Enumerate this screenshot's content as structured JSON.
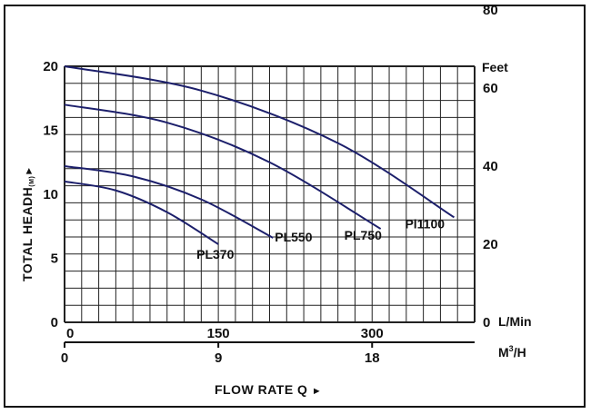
{
  "chart_data": {
    "type": "line",
    "xlabel": "FLOW RATE Q",
    "ylabel": "TOTAL HEADH",
    "ylabel_sub": "(M)",
    "arrow": "►",
    "xlim_m3h": [
      0,
      24
    ],
    "ylim_m": [
      0,
      20
    ],
    "grid": true,
    "y_left_ticks": [
      "0",
      "5",
      "10",
      "15",
      "20"
    ],
    "y_left_values": [
      0,
      5,
      10,
      15,
      20
    ],
    "y_right_unit": "Feet",
    "y_right_ticks": [
      "0",
      "20",
      "40",
      "60",
      "80"
    ],
    "y_right_values_m": [
      0,
      6.1,
      12.2,
      18.3,
      24.4
    ],
    "x_lmin_unit": "L/Min",
    "x_lmin_ticks": [
      "0",
      "150",
      "300"
    ],
    "x_lmin_values_m3h": [
      0,
      9,
      18
    ],
    "x_m3h_unit": "M",
    "x_m3h_unit_sup": "3",
    "x_m3h_unit_tail": "/H",
    "x_m3h_ticks": [
      "0",
      "9",
      "18"
    ],
    "x_m3h_values": [
      0,
      9,
      18
    ],
    "series": [
      {
        "name": "PL370",
        "x": [
          0,
          3,
          6,
          9
        ],
        "y": [
          11.0,
          10.3,
          8.6,
          6.1
        ]
      },
      {
        "name": "PL550",
        "x": [
          0,
          4,
          8,
          12.2
        ],
        "y": [
          12.2,
          11.4,
          9.6,
          6.6
        ]
      },
      {
        "name": "PL750",
        "x": [
          0,
          6,
          12,
          18.5
        ],
        "y": [
          17.0,
          15.6,
          12.5,
          7.3
        ]
      },
      {
        "name": "Pl1100",
        "x": [
          0,
          8,
          16,
          22.8
        ],
        "y": [
          20.0,
          18.1,
          14.0,
          8.2
        ]
      }
    ]
  }
}
